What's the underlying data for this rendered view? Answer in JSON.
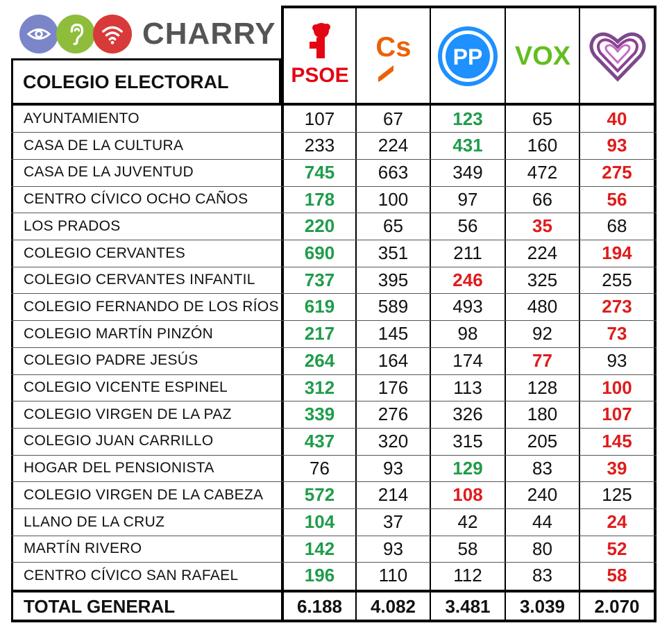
{
  "brand": {
    "name": "CHARRY",
    "icons": [
      {
        "icon": "eye-icon",
        "color": "#7a86c8"
      },
      {
        "icon": "ear-icon",
        "color": "#8dbd3a"
      },
      {
        "icon": "wifi-icon",
        "color": "#d83a3a"
      }
    ]
  },
  "chart_data": {
    "type": "table",
    "row_header": "COLEGIO ELECTORAL",
    "columns": [
      {
        "party": "PSOE",
        "logo_text": "PSOE",
        "color": "#e30613"
      },
      {
        "party": "Cs",
        "logo_text": "Cs",
        "color": "#eb6109"
      },
      {
        "party": "PP",
        "logo_text": "PP",
        "color": "#1e90ff"
      },
      {
        "party": "VOX",
        "logo_text": "VOX",
        "color": "#63be21"
      },
      {
        "party": "Podemos",
        "logo_text": "",
        "color": "#7a4a8b"
      }
    ],
    "rows": [
      {
        "name": "AYUNTAMIENTO",
        "values": [
          "107",
          "67",
          "123",
          "65",
          "40"
        ],
        "highlight": [
          "",
          "",
          "g",
          "",
          "r"
        ]
      },
      {
        "name": "CASA DE LA CULTURA",
        "values": [
          "233",
          "224",
          "431",
          "160",
          "93"
        ],
        "highlight": [
          "",
          "",
          "g",
          "",
          "r"
        ]
      },
      {
        "name": "CASA DE LA JUVENTUD",
        "values": [
          "745",
          "663",
          "349",
          "472",
          "275"
        ],
        "highlight": [
          "g",
          "",
          "",
          "",
          "r"
        ]
      },
      {
        "name": "CENTRO CÍVICO OCHO CAÑOS",
        "values": [
          "178",
          "100",
          "97",
          "66",
          "56"
        ],
        "highlight": [
          "g",
          "",
          "",
          "",
          "r"
        ]
      },
      {
        "name": "LOS PRADOS",
        "values": [
          "220",
          "65",
          "56",
          "35",
          "68"
        ],
        "highlight": [
          "g",
          "",
          "",
          "r",
          ""
        ]
      },
      {
        "name": "COLEGIO CERVANTES",
        "values": [
          "690",
          "351",
          "211",
          "224",
          "194"
        ],
        "highlight": [
          "g",
          "",
          "",
          "",
          "r"
        ]
      },
      {
        "name": "COLEGIO CERVANTES INFANTIL",
        "values": [
          "737",
          "395",
          "246",
          "325",
          "255"
        ],
        "highlight": [
          "g",
          "",
          "r",
          "",
          ""
        ]
      },
      {
        "name": "COLEGIO FERNANDO DE LOS RÍOS",
        "values": [
          "619",
          "589",
          "493",
          "480",
          "273"
        ],
        "highlight": [
          "g",
          "",
          "",
          "",
          "r"
        ]
      },
      {
        "name": "COLEGIO MARTÍN PINZÓN",
        "values": [
          "217",
          "145",
          "98",
          "92",
          "73"
        ],
        "highlight": [
          "g",
          "",
          "",
          "",
          "r"
        ]
      },
      {
        "name": "COLEGIO PADRE JESÚS",
        "values": [
          "264",
          "164",
          "174",
          "77",
          "93"
        ],
        "highlight": [
          "g",
          "",
          "",
          "r",
          ""
        ]
      },
      {
        "name": "COLEGIO VICENTE ESPINEL",
        "values": [
          "312",
          "176",
          "113",
          "128",
          "100"
        ],
        "highlight": [
          "g",
          "",
          "",
          "",
          "r"
        ]
      },
      {
        "name": "COLEGIO VIRGEN DE LA PAZ",
        "values": [
          "339",
          "276",
          "326",
          "180",
          "107"
        ],
        "highlight": [
          "g",
          "",
          "",
          "",
          "r"
        ]
      },
      {
        "name": "COLEGIO JUAN CARRILLO",
        "values": [
          "437",
          "320",
          "315",
          "205",
          "145"
        ],
        "highlight": [
          "g",
          "",
          "",
          "",
          "r"
        ]
      },
      {
        "name": "HOGAR DEL PENSIONISTA",
        "values": [
          "76",
          "93",
          "129",
          "83",
          "39"
        ],
        "highlight": [
          "",
          "",
          "g",
          "",
          "r"
        ]
      },
      {
        "name": "COLEGIO VIRGEN DE LA CABEZA",
        "values": [
          "572",
          "214",
          "108",
          "240",
          "125"
        ],
        "highlight": [
          "g",
          "",
          "r",
          "",
          ""
        ]
      },
      {
        "name": "LLANO DE LA CRUZ",
        "values": [
          "104",
          "37",
          "42",
          "44",
          "24"
        ],
        "highlight": [
          "g",
          "",
          "",
          "",
          "r"
        ]
      },
      {
        "name": "MARTÍN RIVERO",
        "values": [
          "142",
          "93",
          "58",
          "80",
          "52"
        ],
        "highlight": [
          "g",
          "",
          "",
          "",
          "r"
        ]
      },
      {
        "name": "CENTRO CÍVICO SAN RAFAEL",
        "values": [
          "196",
          "110",
          "112",
          "83",
          "58"
        ],
        "highlight": [
          "g",
          "",
          "",
          "",
          "r"
        ]
      }
    ],
    "total": {
      "name": "TOTAL GENERAL",
      "values": [
        "6.188",
        "4.082",
        "3.481",
        "3.039",
        "2.070"
      ]
    },
    "highlight_colors": {
      "g": "#1f9c4a",
      "r": "#e01b1b"
    }
  }
}
